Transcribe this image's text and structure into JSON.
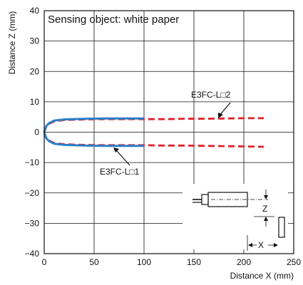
{
  "chart_data": {
    "type": "line",
    "annotation_title": "Sensing object: white paper",
    "xlabel": "Distance X (mm)",
    "ylabel": "Distance Z (mm)",
    "xlim": [
      0,
      250
    ],
    "ylim": [
      -40,
      40
    ],
    "x_ticks": [
      0,
      50,
      100,
      150,
      200,
      250
    ],
    "y_ticks": [
      40,
      30,
      20,
      10,
      0,
      -10,
      -20,
      -30,
      -40
    ],
    "x_tick_labels": [
      "0",
      "50",
      "100",
      "150",
      "200",
      "250"
    ],
    "y_tick_labels": [
      "40",
      "30",
      "20",
      "10",
      "0",
      "−10",
      "−20",
      "−30",
      "−40"
    ],
    "grid": true,
    "series": [
      {
        "name": "E3FC-L□2",
        "color": "#e0202a",
        "style": "dashed",
        "upper": {
          "x": [
            0,
            2,
            5,
            10,
            20,
            40,
            60,
            80,
            100,
            120,
            140,
            160,
            180,
            200,
            220
          ],
          "y": [
            0,
            1.8,
            2.8,
            3.6,
            4.0,
            4.2,
            4.3,
            4.3,
            4.3,
            4.3,
            4.4,
            4.4,
            4.5,
            4.6,
            4.6
          ]
        },
        "lower": {
          "x": [
            0,
            2,
            5,
            10,
            20,
            40,
            60,
            80,
            100,
            120,
            140,
            160,
            180,
            200,
            220
          ],
          "y": [
            0,
            -1.8,
            -2.8,
            -3.6,
            -4.0,
            -4.2,
            -4.3,
            -4.3,
            -4.3,
            -4.4,
            -4.4,
            -4.5,
            -4.6,
            -4.7,
            -4.8
          ]
        }
      },
      {
        "name": "E3FC-L□1",
        "color": "#2a7fc8",
        "style": "solid",
        "upper": {
          "x": [
            0,
            2,
            5,
            10,
            20,
            40,
            60,
            80,
            100
          ],
          "y": [
            0,
            2.0,
            3.0,
            3.8,
            4.2,
            4.4,
            4.5,
            4.5,
            4.5
          ]
        },
        "lower": {
          "x": [
            0,
            2,
            5,
            10,
            20,
            40,
            60,
            80,
            100
          ],
          "y": [
            0,
            -2.0,
            -3.0,
            -3.8,
            -4.2,
            -4.4,
            -4.5,
            -4.5,
            -4.5
          ]
        }
      }
    ],
    "labels": [
      {
        "text": "E3FC-L□2",
        "series": 0
      },
      {
        "text": "E3FC-L□1",
        "series": 1
      }
    ],
    "inset": {
      "z_label": "Z",
      "x_label": "X"
    }
  }
}
